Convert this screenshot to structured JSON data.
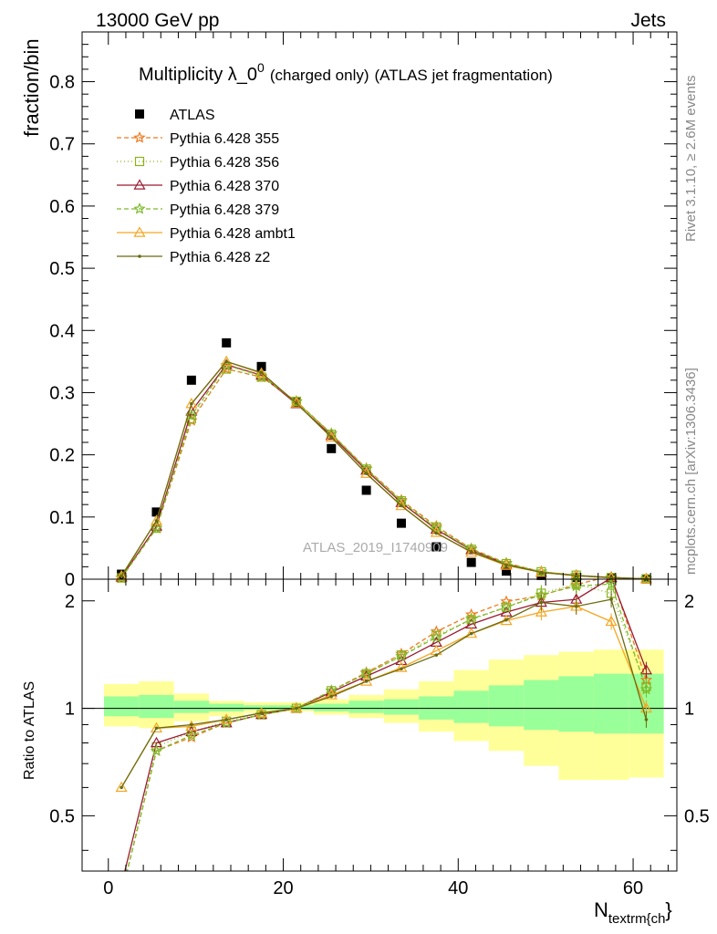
{
  "header": {
    "left": "13000 GeV pp",
    "right": "Jets"
  },
  "side_labels": {
    "rivet": "Rivet 3.1.10, ≥ 2.6M events",
    "mcplots": "mcplots.cern.ch [arXiv:1306.3436]"
  },
  "watermark": "ATLAS_2019_I1740909",
  "colors": {
    "ATLAS": "#000000",
    "p355": "#f07a1e",
    "p356": "#8ab319",
    "p370": "#9b1b30",
    "p379": "#7dbb2b",
    "ambt1": "#f5a623",
    "z2": "#6b6b10",
    "band_inner": "#99ff99",
    "band_outer": "#ffff99"
  },
  "chart_data": [
    {
      "type": "line",
      "title": "Multiplicity λ_0",
      "title_sup": "0",
      "title_suffix1": "(charged only)",
      "title_suffix2": "(ATLAS jet fragmentation)",
      "ylabel": "fraction/bin",
      "xlim": [
        -3,
        65
      ],
      "ylim": [
        0,
        0.88
      ],
      "yticks": [
        "0",
        "0.1",
        "0.2",
        "0.3",
        "0.4",
        "0.5",
        "0.6",
        "0.7",
        "0.8"
      ],
      "x": [
        1.5,
        5.5,
        9.5,
        13.5,
        17.5,
        21.5,
        25.5,
        29.5,
        33.5,
        37.5,
        41.5,
        45.5,
        49.5,
        53.5,
        57.5,
        61.5
      ],
      "series": [
        {
          "name": "ATLAS",
          "key": "ATLAS",
          "style": "data",
          "values": [
            0.008,
            0.108,
            0.32,
            0.38,
            0.342,
            0.284,
            0.21,
            0.143,
            0.09,
            0.052,
            0.027,
            0.013,
            0.006,
            0.003,
            0.0012,
            0.0004
          ]
        },
        {
          "name": "Pythia 6.428 355",
          "key": "p355",
          "marker": "star",
          "dash": "5,3",
          "values": [
            0.002,
            0.082,
            0.255,
            0.338,
            0.325,
            0.286,
            0.234,
            0.178,
            0.127,
            0.085,
            0.049,
            0.026,
            0.012,
            0.0063,
            0.0028,
            0.0005
          ]
        },
        {
          "name": "Pythia 6.428 356",
          "key": "p356",
          "marker": "square",
          "dash": "1,3",
          "values": [
            0.002,
            0.082,
            0.258,
            0.338,
            0.325,
            0.286,
            0.233,
            0.177,
            0.126,
            0.084,
            0.048,
            0.025,
            0.012,
            0.0064,
            0.0026,
            0.0005
          ]
        },
        {
          "name": "Pythia 6.428 370",
          "key": "p370",
          "marker": "triangle",
          "dash": "",
          "values": [
            0.003,
            0.085,
            0.27,
            0.345,
            0.328,
            0.282,
            0.231,
            0.175,
            0.123,
            0.08,
            0.047,
            0.024,
            0.011,
            0.006,
            0.0028,
            0.0005
          ]
        },
        {
          "name": "Pythia 6.428 379",
          "key": "p379",
          "marker": "star",
          "dash": "5,3",
          "values": [
            0.002,
            0.082,
            0.263,
            0.344,
            0.327,
            0.285,
            0.234,
            0.177,
            0.125,
            0.082,
            0.048,
            0.025,
            0.012,
            0.0062,
            0.0026,
            0.0005
          ]
        },
        {
          "name": "Pythia 6.428 ambt1",
          "key": "ambt1",
          "marker": "triangle",
          "dash": "",
          "values": [
            0.005,
            0.094,
            0.282,
            0.35,
            0.331,
            0.283,
            0.228,
            0.17,
            0.118,
            0.075,
            0.043,
            0.022,
            0.011,
            0.0056,
            0.0021,
            0.0004
          ]
        },
        {
          "name": "Pythia 6.428 z2",
          "key": "z2",
          "marker": "dot",
          "dash": "",
          "values": [
            0.005,
            0.094,
            0.282,
            0.35,
            0.332,
            0.283,
            0.228,
            0.17,
            0.118,
            0.074,
            0.044,
            0.023,
            0.011,
            0.0057,
            0.0024,
            0.0004
          ]
        }
      ]
    },
    {
      "type": "line",
      "ylabel": "Ratio to ATLAS",
      "xlabel": "N",
      "xlabel_sub": "textrm{ch",
      "xlabel_tail": "}",
      "xlim": [
        -3,
        65
      ],
      "ylim": [
        0.35,
        2.3
      ],
      "xticks": [
        "0",
        "20",
        "40",
        "60"
      ],
      "yticks_left": [
        "0.5",
        "1",
        "2"
      ],
      "yticks_right": [
        "0.5",
        "1",
        "2"
      ],
      "bins": [
        [
          -0.5,
          3.5
        ],
        [
          3.5,
          7.5
        ],
        [
          7.5,
          11.5
        ],
        [
          11.5,
          15.5
        ],
        [
          15.5,
          19.5
        ],
        [
          19.5,
          23.5
        ],
        [
          23.5,
          27.5
        ],
        [
          27.5,
          31.5
        ],
        [
          31.5,
          35.5
        ],
        [
          35.5,
          39.5
        ],
        [
          39.5,
          43.5
        ],
        [
          43.5,
          47.5
        ],
        [
          47.5,
          51.5
        ],
        [
          51.5,
          55.5
        ],
        [
          55.5,
          59.5
        ],
        [
          59.5,
          63.5
        ]
      ],
      "band_inner": [
        [
          0.95,
          1.08
        ],
        [
          0.94,
          1.09
        ],
        [
          0.97,
          1.05
        ],
        [
          0.98,
          1.03
        ],
        [
          0.99,
          1.02
        ],
        [
          0.99,
          1.02
        ],
        [
          0.98,
          1.03
        ],
        [
          0.97,
          1.05
        ],
        [
          0.96,
          1.06
        ],
        [
          0.93,
          1.08
        ],
        [
          0.91,
          1.12
        ],
        [
          0.89,
          1.16
        ],
        [
          0.87,
          1.2
        ],
        [
          0.86,
          1.23
        ],
        [
          0.85,
          1.25
        ],
        [
          0.85,
          1.25
        ]
      ],
      "band_outer": [
        [
          0.89,
          1.17
        ],
        [
          0.88,
          1.19
        ],
        [
          0.92,
          1.1
        ],
        [
          0.95,
          1.05
        ],
        [
          0.97,
          1.04
        ],
        [
          0.98,
          1.04
        ],
        [
          0.96,
          1.06
        ],
        [
          0.94,
          1.09
        ],
        [
          0.91,
          1.13
        ],
        [
          0.86,
          1.19
        ],
        [
          0.81,
          1.28
        ],
        [
          0.76,
          1.37
        ],
        [
          0.69,
          1.41
        ],
        [
          0.63,
          1.44
        ],
        [
          0.63,
          1.46
        ],
        [
          0.64,
          1.46
        ]
      ],
      "x": [
        1.5,
        5.5,
        9.5,
        13.5,
        17.5,
        21.5,
        25.5,
        29.5,
        33.5,
        37.5,
        41.5,
        45.5,
        49.5,
        53.5,
        57.5,
        61.5
      ],
      "series": [
        {
          "name": "Pythia 6.428 355",
          "key": "p355",
          "marker": "star",
          "dash": "5,3",
          "values": [
            0.3,
            0.76,
            0.83,
            0.91,
            0.96,
            1.0,
            1.12,
            1.26,
            1.42,
            1.64,
            1.83,
            1.99,
            2.07,
            2.22,
            2.35,
            1.2
          ]
        },
        {
          "name": "Pythia 6.428 356",
          "key": "p356",
          "marker": "square",
          "dash": "1,3",
          "values": [
            0.3,
            0.78,
            0.86,
            0.92,
            0.96,
            1.0,
            1.12,
            1.25,
            1.41,
            1.6,
            1.77,
            1.92,
            2.1,
            2.23,
            2.1,
            1.15
          ]
        },
        {
          "name": "Pythia 6.428 370",
          "key": "p370",
          "marker": "triangle",
          "dash": "",
          "values": [
            0.32,
            0.8,
            0.86,
            0.91,
            0.96,
            1.0,
            1.11,
            1.23,
            1.36,
            1.53,
            1.72,
            1.86,
            1.98,
            2.02,
            2.32,
            1.28
          ]
        },
        {
          "name": "Pythia 6.428 379",
          "key": "p379",
          "marker": "star",
          "dash": "5,3",
          "values": [
            0.3,
            0.76,
            0.84,
            0.91,
            0.96,
            1.0,
            1.12,
            1.25,
            1.4,
            1.58,
            1.78,
            1.92,
            2.08,
            2.2,
            2.23,
            1.13
          ]
        },
        {
          "name": "Pythia 6.428 ambt1",
          "key": "ambt1",
          "marker": "triangle",
          "dash": "",
          "values": [
            0.6,
            0.88,
            0.89,
            0.93,
            0.97,
            1.0,
            1.09,
            1.19,
            1.3,
            1.45,
            1.62,
            1.76,
            1.86,
            1.93,
            1.75,
            1.0
          ]
        },
        {
          "name": "Pythia 6.428 z2",
          "key": "z2",
          "marker": "dot",
          "dash": "",
          "values": [
            0.6,
            0.88,
            0.9,
            0.93,
            0.97,
            1.0,
            1.08,
            1.19,
            1.29,
            1.41,
            1.62,
            1.77,
            1.98,
            1.93,
            2.02,
            0.93
          ]
        }
      ]
    }
  ]
}
